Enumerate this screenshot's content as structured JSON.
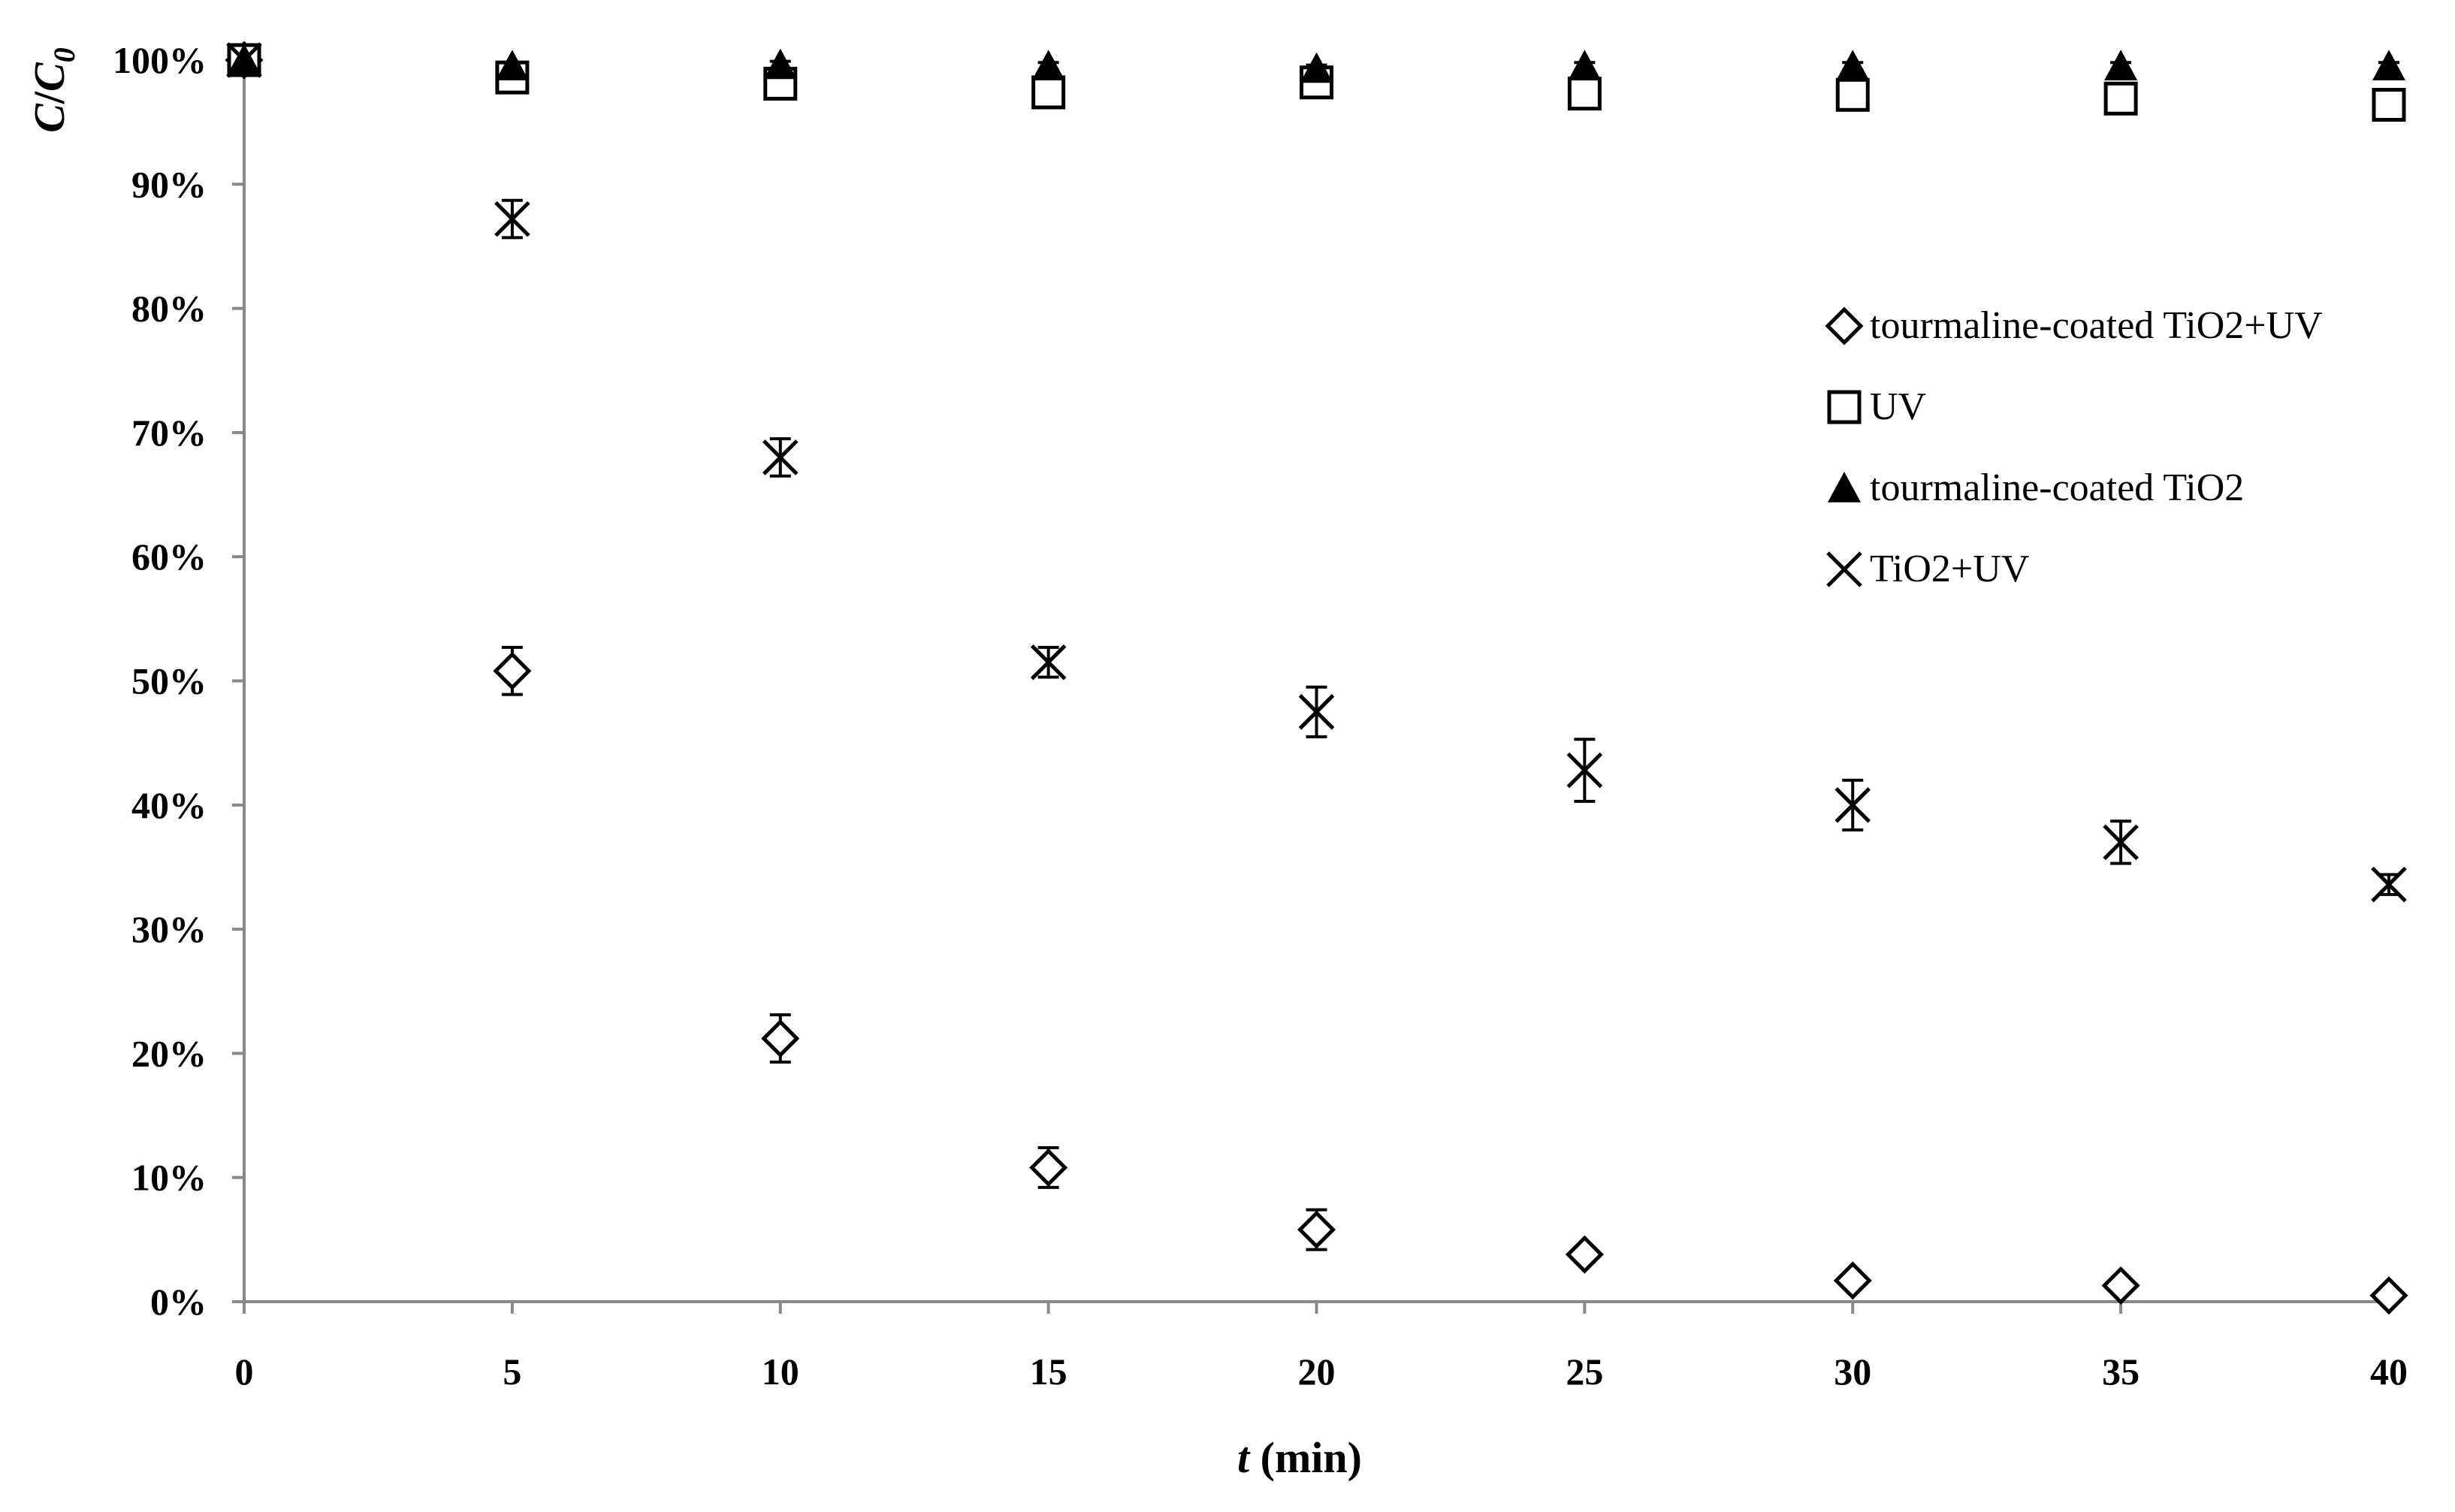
{
  "chart_data": {
    "type": "scatter",
    "title": "",
    "xlabel": {
      "italic": "t",
      "rest": " (min)"
    },
    "ylabel": {
      "main": "C",
      "sep": "/",
      "main2": "C",
      "sub": "0"
    },
    "xlim": [
      0,
      40
    ],
    "ylim": [
      0,
      1
    ],
    "xticks": [
      0,
      5,
      10,
      15,
      20,
      25,
      30,
      35,
      40
    ],
    "yticks": [
      0,
      0.1,
      0.2,
      0.3,
      0.4,
      0.5,
      0.6,
      0.7,
      0.8,
      0.9,
      1.0
    ],
    "ytick_labels": [
      "0%",
      "10%",
      "20%",
      "30%",
      "40%",
      "50%",
      "60%",
      "70%",
      "80%",
      "90%",
      "100%"
    ],
    "grid": false,
    "legend_position": "right, upper-middle",
    "x": [
      0,
      5,
      10,
      15,
      20,
      25,
      30,
      35,
      40
    ],
    "series": [
      {
        "name": "tourmaline-coated TiO2+UV",
        "marker": "diamond-open",
        "values": [
          1.0,
          0.508,
          0.212,
          0.108,
          0.058,
          0.038,
          0.017,
          0.013,
          0.005
        ],
        "errors": [
          0.0,
          0.019,
          0.019,
          0.016,
          0.016,
          0.006,
          0.004,
          0.004,
          0.003
        ]
      },
      {
        "name": "UV",
        "marker": "square-open",
        "values": [
          1.0,
          0.986,
          0.981,
          0.974,
          0.982,
          0.973,
          0.972,
          0.969,
          0.964
        ],
        "errors": [
          0.0,
          0.006,
          0.012,
          0.006,
          0.006,
          0.006,
          0.006,
          0.011,
          0.006
        ]
      },
      {
        "name": "tourmaline-coated TiO2",
        "marker": "triangle-filled",
        "values": [
          1.0,
          0.995,
          0.996,
          0.995,
          0.993,
          0.995,
          0.995,
          0.995,
          0.995
        ],
        "errors": [
          0.0,
          0.003,
          0.003,
          0.003,
          0.003,
          0.003,
          0.003,
          0.003,
          0.003
        ]
      },
      {
        "name": "TiO2+UV",
        "marker": "x",
        "values": [
          1.0,
          0.872,
          0.68,
          0.515,
          0.475,
          0.428,
          0.4,
          0.37,
          0.336
        ],
        "errors": [
          0.0,
          0.015,
          0.015,
          0.012,
          0.02,
          0.025,
          0.02,
          0.017,
          0.008
        ]
      }
    ]
  }
}
